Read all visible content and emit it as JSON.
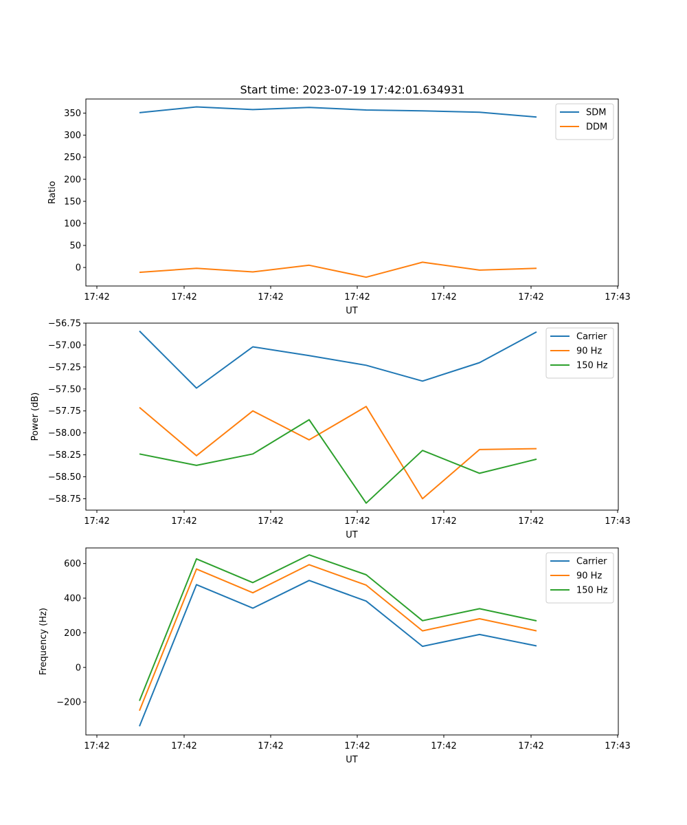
{
  "figure_title": "Start time: 2023-07-19 17:42:01.634931",
  "colors": {
    "blue": "#1f77b4",
    "orange": "#ff7f0e",
    "green": "#2ca02c"
  },
  "chart_data": [
    {
      "id": "ratio",
      "type": "line",
      "xlabel": "UT",
      "ylabel": "Ratio",
      "xtick_labels": [
        "17:42",
        "17:42",
        "17:42",
        "17:42",
        "17:42",
        "17:42",
        "17:42",
        "17:43"
      ],
      "yticks": [
        0,
        50,
        100,
        150,
        200,
        250,
        300,
        350
      ],
      "yticklabels": [
        "0",
        "50",
        "100",
        "150",
        "200",
        "250",
        "300",
        "350"
      ],
      "ylim": [
        -42,
        382
      ],
      "legend_position": "top-right",
      "series": [
        {
          "name": "SDM",
          "color": "#1f77b4",
          "values": [
            351,
            364,
            358,
            363,
            357,
            355,
            352,
            341
          ]
        },
        {
          "name": "DDM",
          "color": "#ff7f0e",
          "values": [
            -11,
            -2,
            -10,
            5,
            -22,
            12,
            -6,
            -2
          ]
        }
      ]
    },
    {
      "id": "power",
      "type": "line",
      "xlabel": "UT",
      "ylabel": "Power (dB)",
      "xtick_labels": [
        "17:42",
        "17:42",
        "17:42",
        "17:42",
        "17:42",
        "17:42",
        "17:42",
        "17:43"
      ],
      "yticks": [
        -56.75,
        -57.0,
        -57.25,
        -57.5,
        -57.75,
        -58.0,
        -58.25,
        -58.5,
        -58.75
      ],
      "yticklabels": [
        "−56.75",
        "−57.00",
        "−57.25",
        "−57.50",
        "−57.75",
        "−58.00",
        "−58.25",
        "−58.50",
        "−58.75"
      ],
      "ylim": [
        -58.88,
        -56.75
      ],
      "legend_position": "top-right",
      "series": [
        {
          "name": "Carrier",
          "color": "#1f77b4",
          "values": [
            -56.84,
            -57.49,
            -57.02,
            -57.12,
            -57.23,
            -57.41,
            -57.2,
            -56.85
          ]
        },
        {
          "name": "90 Hz",
          "color": "#ff7f0e",
          "values": [
            -57.71,
            -58.26,
            -57.75,
            -58.08,
            -57.7,
            -58.75,
            -58.19,
            -58.18
          ]
        },
        {
          "name": "150 Hz",
          "color": "#2ca02c",
          "values": [
            -58.24,
            -58.37,
            -58.24,
            -57.85,
            -58.8,
            -58.2,
            -58.46,
            -58.3
          ]
        }
      ]
    },
    {
      "id": "frequency",
      "type": "line",
      "xlabel": "UT",
      "ylabel": "Frequency (Hz)",
      "xtick_labels": [
        "17:42",
        "17:42",
        "17:42",
        "17:42",
        "17:42",
        "17:42",
        "17:42",
        "17:43"
      ],
      "yticks": [
        -200,
        0,
        200,
        400,
        600
      ],
      "yticklabels": [
        "−200",
        "0",
        "200",
        "400",
        "600"
      ],
      "ylim": [
        -390,
        690
      ],
      "legend_position": "top-right",
      "series": [
        {
          "name": "Carrier",
          "color": "#1f77b4",
          "values": [
            -340,
            478,
            342,
            502,
            383,
            122,
            190,
            124
          ]
        },
        {
          "name": "90 Hz",
          "color": "#ff7f0e",
          "values": [
            -250,
            568,
            431,
            593,
            475,
            211,
            281,
            211
          ]
        },
        {
          "name": "150 Hz",
          "color": "#2ca02c",
          "values": [
            -193,
            627,
            490,
            650,
            535,
            270,
            339,
            269
          ]
        }
      ]
    }
  ]
}
